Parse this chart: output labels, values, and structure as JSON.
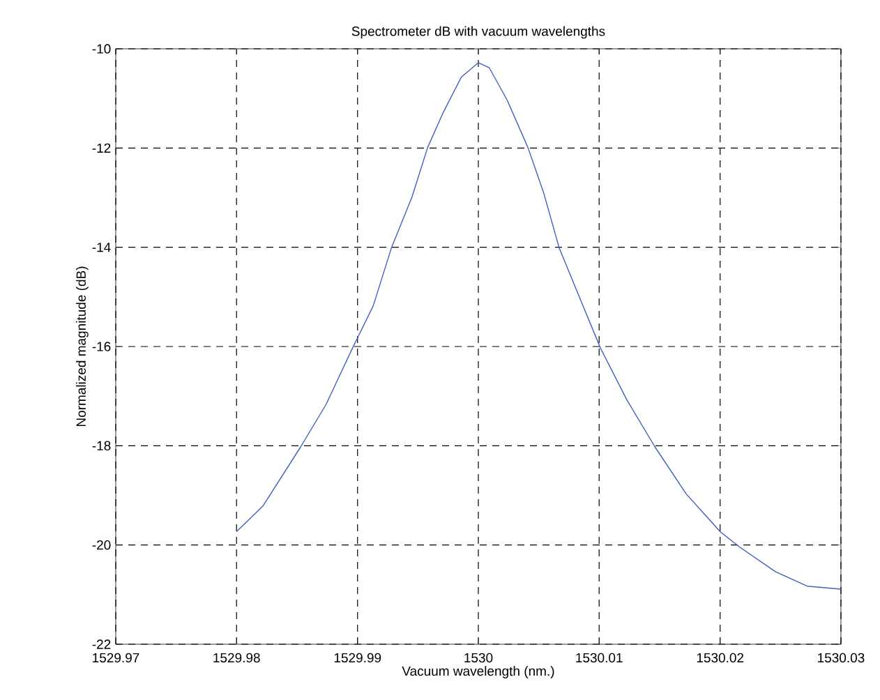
{
  "chart_data": {
    "type": "line",
    "title": "Spectrometer dB with vacuum wavelengths",
    "xlabel": "Vacuum wavelength (nm.)",
    "ylabel": "Normalized magnitude (dB)",
    "xlim": [
      1529.97,
      1530.03
    ],
    "ylim": [
      -22,
      -10
    ],
    "xticks": [
      1529.97,
      1529.98,
      1529.99,
      1530,
      1530.01,
      1530.02,
      1530.03
    ],
    "yticks": [
      -22,
      -20,
      -18,
      -16,
      -14,
      -12,
      -10
    ],
    "grid": true,
    "series": [
      {
        "color": "#3f5fbf",
        "x": [
          1529.98,
          1529.9822,
          1529.9853,
          1529.9874,
          1529.9896,
          1529.9913,
          1529.9928,
          1529.9945,
          1529.9958,
          1529.9971,
          1529.9986,
          1530.0,
          1530.0009,
          1530.0024,
          1530.0041,
          1530.0054,
          1530.0067,
          1530.0084,
          1530.0101,
          1530.0123,
          1530.0146,
          1530.0172,
          1530.02,
          1530.0216,
          1530.0246,
          1530.0272,
          1530.03
        ],
        "values": [
          -19.73,
          -19.21,
          -18.02,
          -17.17,
          -16.03,
          -15.18,
          -14.02,
          -12.99,
          -11.99,
          -11.28,
          -10.57,
          -10.28,
          -10.38,
          -11.04,
          -11.99,
          -12.9,
          -14.02,
          -15.03,
          -16.03,
          -17.08,
          -18.02,
          -18.97,
          -19.73,
          -20.04,
          -20.54,
          -20.83,
          -20.89
        ]
      }
    ]
  }
}
